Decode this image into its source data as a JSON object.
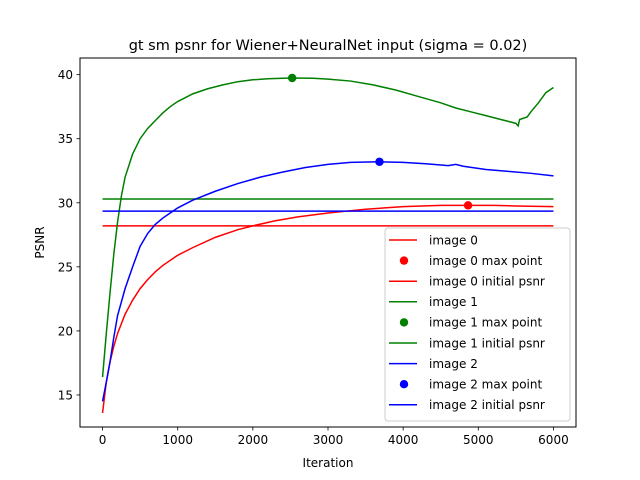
{
  "chart_data": {
    "type": "line",
    "title": "gt sm psnr for Wiener+NeuralNet input (sigma = 0.02)",
    "xlabel": "Iteration",
    "ylabel": "PSNR",
    "xlim": [
      -300,
      6300
    ],
    "ylim": [
      12.5,
      41.3
    ],
    "xticks": [
      0,
      1000,
      2000,
      3000,
      4000,
      5000,
      6000
    ],
    "yticks": [
      15,
      20,
      25,
      30,
      35,
      40
    ],
    "grid": false,
    "legend_position": "lower-right",
    "series": [
      {
        "name": "image 0",
        "color": "#ff0000",
        "points": [
          [
            0,
            13.6
          ],
          [
            50,
            16.0
          ],
          [
            100,
            17.6
          ],
          [
            150,
            18.8
          ],
          [
            200,
            19.8
          ],
          [
            300,
            21.3
          ],
          [
            400,
            22.4
          ],
          [
            500,
            23.3
          ],
          [
            600,
            24.0
          ],
          [
            700,
            24.6
          ],
          [
            800,
            25.1
          ],
          [
            1000,
            25.9
          ],
          [
            1200,
            26.5
          ],
          [
            1500,
            27.3
          ],
          [
            1800,
            27.9
          ],
          [
            2000,
            28.2
          ],
          [
            2300,
            28.6
          ],
          [
            2600,
            28.9
          ],
          [
            3000,
            29.2
          ],
          [
            3500,
            29.5
          ],
          [
            4000,
            29.7
          ],
          [
            4500,
            29.8
          ],
          [
            4864,
            29.8
          ],
          [
            5200,
            29.8
          ],
          [
            5500,
            29.75
          ],
          [
            6000,
            29.7
          ]
        ]
      },
      {
        "name": "image 0 max point",
        "color": "#ff0000",
        "x": 4864,
        "y": 29.8
      },
      {
        "name": "image 0 initial psnr",
        "color": "#ff0000",
        "y": 28.2,
        "x_range": [
          0,
          6000
        ]
      },
      {
        "name": "image 1",
        "color": "#008000",
        "points": [
          [
            0,
            16.4
          ],
          [
            50,
            19.8
          ],
          [
            100,
            23.0
          ],
          [
            150,
            26.0
          ],
          [
            200,
            28.5
          ],
          [
            250,
            30.5
          ],
          [
            300,
            32.0
          ],
          [
            400,
            33.8
          ],
          [
            500,
            35.0
          ],
          [
            600,
            35.8
          ],
          [
            700,
            36.4
          ],
          [
            800,
            37.0
          ],
          [
            900,
            37.5
          ],
          [
            1000,
            37.9
          ],
          [
            1200,
            38.5
          ],
          [
            1400,
            38.9
          ],
          [
            1600,
            39.2
          ],
          [
            1800,
            39.45
          ],
          [
            2000,
            39.6
          ],
          [
            2200,
            39.68
          ],
          [
            2400,
            39.72
          ],
          [
            2523,
            39.74
          ],
          [
            2800,
            39.72
          ],
          [
            3000,
            39.65
          ],
          [
            3300,
            39.5
          ],
          [
            3600,
            39.2
          ],
          [
            3900,
            38.8
          ],
          [
            4200,
            38.3
          ],
          [
            4500,
            37.8
          ],
          [
            4700,
            37.4
          ],
          [
            4900,
            37.1
          ],
          [
            5100,
            36.8
          ],
          [
            5300,
            36.5
          ],
          [
            5500,
            36.2
          ],
          [
            5530,
            36.0
          ],
          [
            5550,
            36.5
          ],
          [
            5650,
            36.7
          ],
          [
            5700,
            37.1
          ],
          [
            5800,
            37.8
          ],
          [
            5900,
            38.6
          ],
          [
            6000,
            39.0
          ]
        ]
      },
      {
        "name": "image 1 max point",
        "color": "#008000",
        "x": 2523,
        "y": 39.74
      },
      {
        "name": "image 1 initial psnr",
        "color": "#008000",
        "y": 30.3,
        "x_range": [
          0,
          6000
        ]
      },
      {
        "name": "image 2",
        "color": "#0000ff",
        "points": [
          [
            0,
            14.5
          ],
          [
            50,
            16.0
          ],
          [
            100,
            17.6
          ],
          [
            150,
            19.5
          ],
          [
            200,
            21.2
          ],
          [
            300,
            23.3
          ],
          [
            400,
            25.0
          ],
          [
            500,
            26.6
          ],
          [
            600,
            27.6
          ],
          [
            700,
            28.3
          ],
          [
            800,
            28.8
          ],
          [
            900,
            29.2
          ],
          [
            1000,
            29.6
          ],
          [
            1200,
            30.2
          ],
          [
            1500,
            30.9
          ],
          [
            1800,
            31.5
          ],
          [
            2100,
            32.0
          ],
          [
            2400,
            32.4
          ],
          [
            2700,
            32.75
          ],
          [
            3000,
            33.0
          ],
          [
            3300,
            33.15
          ],
          [
            3685,
            33.2
          ],
          [
            4000,
            33.15
          ],
          [
            4300,
            33.05
          ],
          [
            4600,
            32.9
          ],
          [
            4700,
            33.0
          ],
          [
            4800,
            32.85
          ],
          [
            5100,
            32.6
          ],
          [
            5400,
            32.45
          ],
          [
            5700,
            32.3
          ],
          [
            6000,
            32.1
          ]
        ]
      },
      {
        "name": "image 2 max point",
        "color": "#0000ff",
        "x": 3685,
        "y": 33.2
      },
      {
        "name": "image 2 initial psnr",
        "color": "#0000ff",
        "y": 29.35,
        "x_range": [
          0,
          6000
        ]
      }
    ]
  }
}
